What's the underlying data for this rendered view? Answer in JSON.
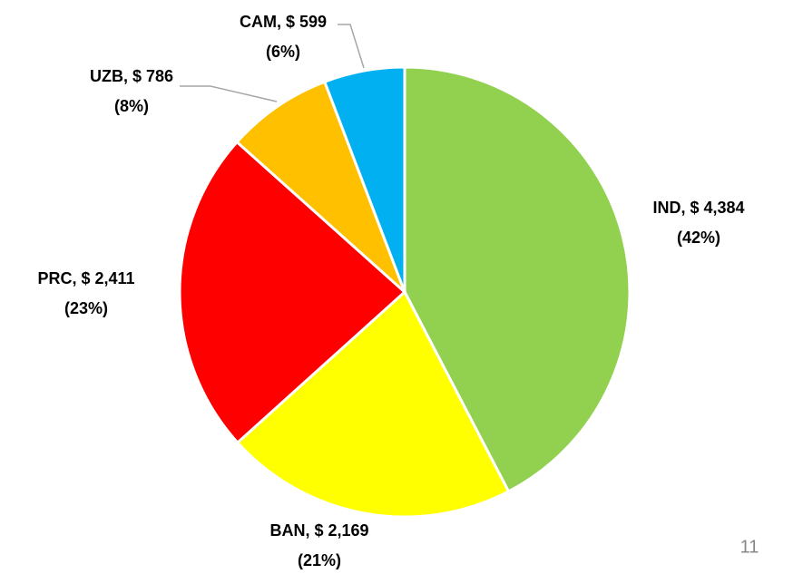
{
  "chart_data": {
    "type": "pie",
    "categories": [
      "IND",
      "BAN",
      "PRC",
      "UZB",
      "CAM"
    ],
    "values": [
      4384,
      2169,
      2411,
      786,
      599
    ],
    "value_labels": [
      "IND, $ 4,384",
      "BAN, $ 2,169",
      "PRC, $ 2,411",
      "UZB, $ 786",
      "CAM, $ 599"
    ],
    "percent_labels": [
      "(42%)",
      "(21%)",
      "(23%)",
      "(8%)",
      "(6%)"
    ],
    "colors": [
      "#92d050",
      "#ffff00",
      "#ff0000",
      "#ffc000",
      "#00b0f0"
    ]
  },
  "page_number": "11"
}
